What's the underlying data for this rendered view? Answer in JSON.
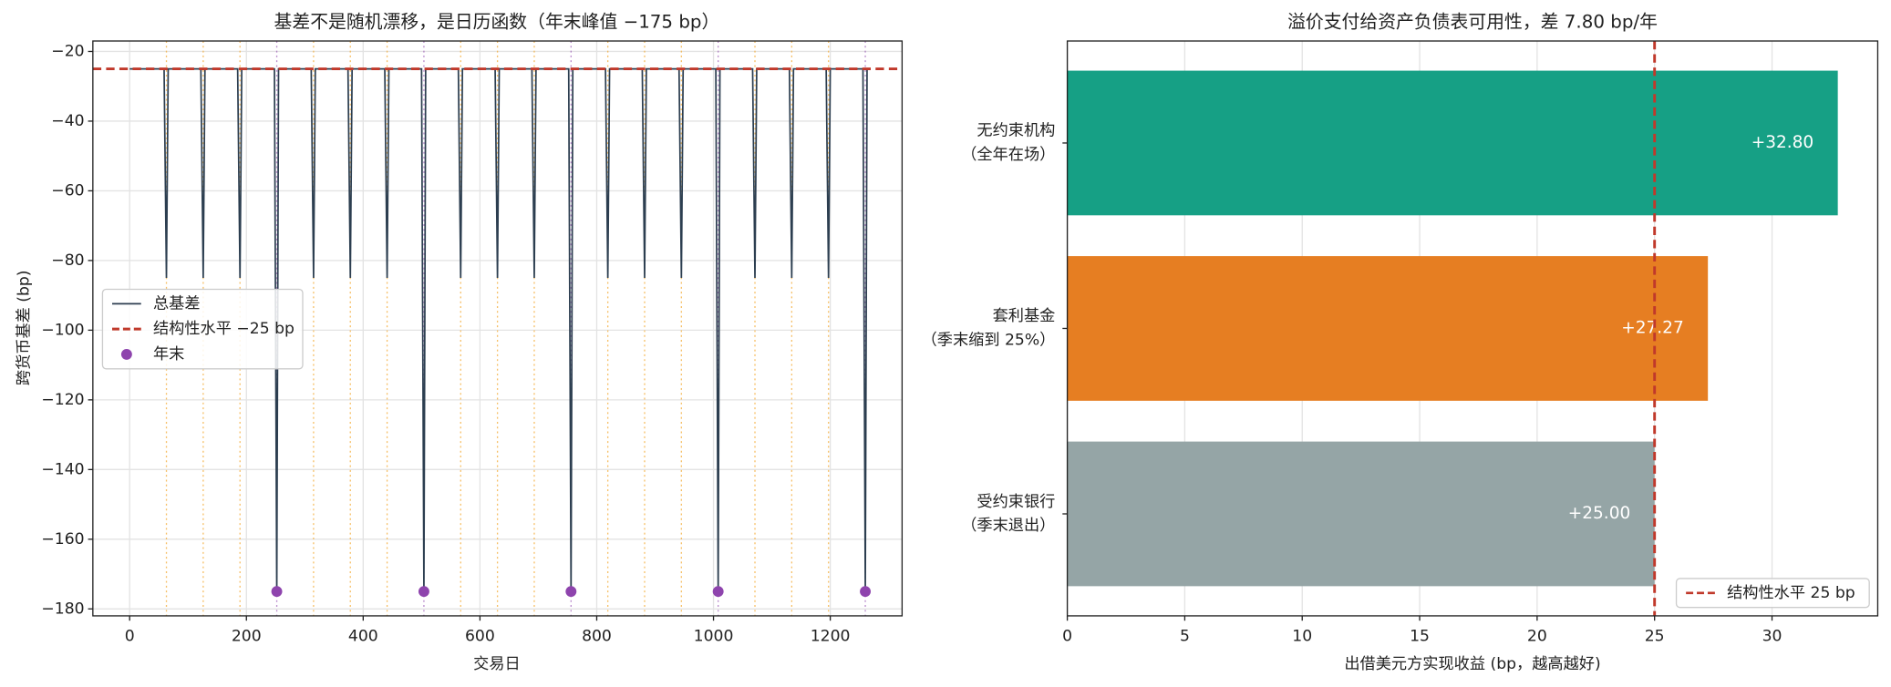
{
  "chart_data": [
    {
      "type": "line",
      "title": "基差不是随机漂移，是日历函数（年末峰值 −175 bp）",
      "x_label": "交易日",
      "y_label": "跨货币基差 (bp)",
      "x": [
        0,
        59,
        63,
        66,
        122,
        126,
        129,
        185,
        189,
        192,
        248,
        252,
        255,
        311,
        315,
        318,
        374,
        378,
        381,
        437,
        441,
        444,
        500,
        504,
        507,
        563,
        567,
        570,
        626,
        630,
        633,
        689,
        693,
        696,
        752,
        756,
        759,
        815,
        819,
        822,
        878,
        882,
        885,
        941,
        945,
        948,
        1004,
        1008,
        1011,
        1067,
        1071,
        1074,
        1130,
        1134,
        1137,
        1193,
        1197,
        1200,
        1256,
        1260,
        1263
      ],
      "series": [
        {
          "name": "总基差",
          "color": "#2c3e50",
          "values": [
            -25,
            -25,
            -85,
            -25,
            -25,
            -85,
            -25,
            -25,
            -85,
            -25,
            -25,
            -175,
            -25,
            -25,
            -85,
            -25,
            -25,
            -85,
            -25,
            -25,
            -85,
            -25,
            -25,
            -175,
            -25,
            -25,
            -85,
            -25,
            -25,
            -85,
            -25,
            -25,
            -85,
            -25,
            -25,
            -175,
            -25,
            -25,
            -85,
            -25,
            -25,
            -85,
            -25,
            -25,
            -85,
            -25,
            -25,
            -175,
            -25,
            -25,
            -85,
            -25,
            -25,
            -85,
            -25,
            -25,
            -85,
            -25,
            -25,
            -175,
            -25
          ]
        }
      ],
      "reference_line": {
        "name": "结构性水平 −25 bp",
        "value": -25,
        "color": "#c0392b"
      },
      "points": {
        "name": "年末",
        "color": "#8e44ad",
        "x": [
          252,
          504,
          756,
          1008,
          1260
        ],
        "values": [
          -175,
          -175,
          -175,
          -175,
          -175
        ]
      },
      "quarter_ends": [
        63,
        126,
        189,
        315,
        378,
        441,
        567,
        630,
        693,
        819,
        882,
        945,
        1071,
        1134,
        1197
      ],
      "quarter_color": "#f5b041",
      "xlim": [
        -63,
        1323
      ],
      "ylim": [
        -182,
        -17
      ],
      "xticks": [
        0,
        200,
        400,
        600,
        800,
        1000,
        1200
      ],
      "yticks": [
        {
          "value": -20,
          "label": "−20"
        },
        {
          "value": -40,
          "label": "−40"
        },
        {
          "value": -60,
          "label": "−60"
        },
        {
          "value": -80,
          "label": "−80"
        },
        {
          "value": -100,
          "label": "−100"
        },
        {
          "value": -120,
          "label": "−120"
        },
        {
          "value": -140,
          "label": "−140"
        },
        {
          "value": -160,
          "label": "−160"
        },
        {
          "value": -180,
          "label": "−180"
        }
      ],
      "grid": true,
      "legend": "center left"
    },
    {
      "type": "bar",
      "orientation": "horizontal",
      "title": "溢价支付给资产负债表可用性，差 7.80 bp/年",
      "x_label": "出借美元方实现收益 (bp，越高越好)",
      "categories": [
        [
          "无约束机构",
          "（全年在场）"
        ],
        [
          "套利基金",
          "（季末缩到 25%）"
        ],
        [
          "受约束银行",
          "（季末退出）"
        ]
      ],
      "values": [
        32.8,
        27.27,
        25.0
      ],
      "value_labels": [
        "+32.80",
        "+27.27",
        "+25.00"
      ],
      "colors": [
        "#16a085",
        "#e67e22",
        "#95a5a6"
      ],
      "reference_line": {
        "name": "结构性水平 25 bp",
        "value": 25,
        "color": "#c0392b"
      },
      "xlim": [
        0,
        34.5
      ],
      "xticks": [
        0,
        5,
        10,
        15,
        20,
        25,
        30
      ],
      "grid": true,
      "legend": "lower right"
    }
  ]
}
